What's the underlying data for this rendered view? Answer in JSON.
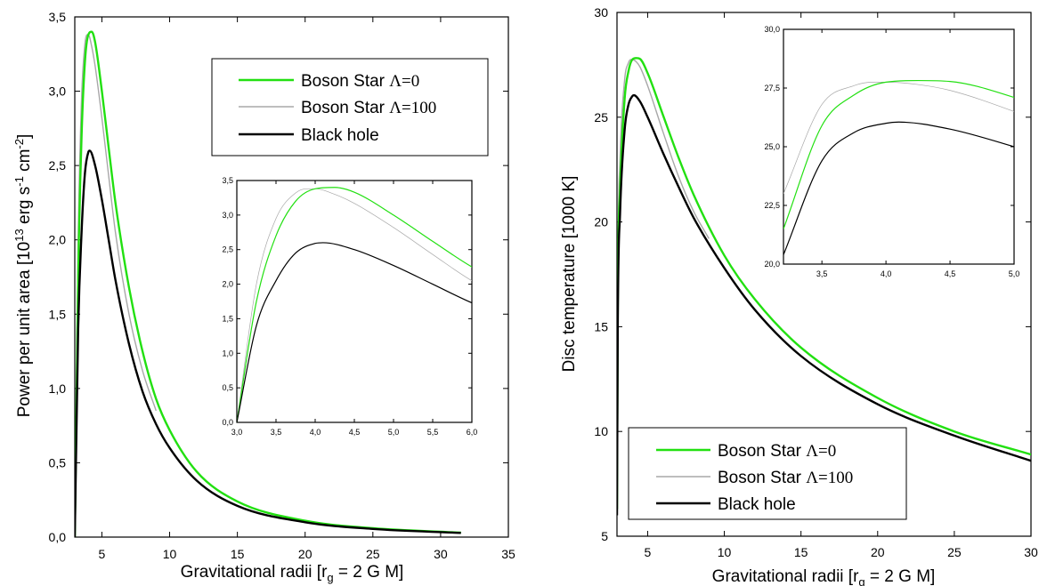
{
  "chart_data": [
    {
      "type": "line",
      "xlabel_main": "Gravitational radii [r",
      "xlabel_sub": "g",
      "xlabel_rest": " = 2 G M]",
      "ylabel_main": "Power per unit area [10",
      "ylabel_sup1": "13",
      "ylabel_mid": " erg s",
      "ylabel_sup2": "-1",
      "ylabel_mid2": " cm",
      "ylabel_sup3": "-2",
      "ylabel_end": "]",
      "xlim": [
        3,
        35
      ],
      "ylim": [
        0,
        3.5
      ],
      "xticks": [
        "5",
        "10",
        "15",
        "20",
        "25",
        "30",
        "35"
      ],
      "xtick_values": [
        5,
        10,
        15,
        20,
        25,
        30,
        35
      ],
      "yticks": [
        "0,0",
        "0,5",
        "1,0",
        "1,5",
        "2,0",
        "2,5",
        "3,0",
        "3,5"
      ],
      "ytick_values": [
        0,
        0.5,
        1.0,
        1.5,
        2.0,
        2.5,
        3.0,
        3.5
      ],
      "legend": [
        {
          "name": "Boson Star",
          "greek": "Λ=0",
          "color": "#22e011"
        },
        {
          "name": "Boson Star",
          "greek": "Λ=100",
          "color": "#a8a8a8"
        },
        {
          "name": "Black hole",
          "greek": "",
          "color": "#000000"
        }
      ],
      "series": [
        {
          "name": "Boson Star Λ=0",
          "color": "#22e011",
          "x": [
            3.0,
            3.25,
            3.5,
            3.75,
            4.0,
            4.25,
            4.5,
            5.0,
            5.5,
            6.0,
            7.0,
            8.0,
            9.0,
            10.0,
            12.0,
            15.0,
            20.0,
            25.0,
            31.5
          ],
          "y": [
            0.0,
            1.75,
            2.7,
            3.2,
            3.38,
            3.4,
            3.33,
            3.0,
            2.62,
            2.25,
            1.68,
            1.25,
            0.93,
            0.72,
            0.44,
            0.24,
            0.11,
            0.06,
            0.03
          ]
        },
        {
          "name": "Boson Star Λ=100",
          "color": "#a8a8a8",
          "x": [
            3.0,
            3.25,
            3.5,
            3.75,
            3.9,
            4.0,
            4.25,
            4.5,
            5.0,
            5.5,
            6.0,
            7.0,
            8.0,
            9.0
          ],
          "y": [
            0.0,
            2.0,
            2.95,
            3.32,
            3.38,
            3.38,
            3.3,
            3.17,
            2.82,
            2.43,
            2.05,
            1.5,
            1.12,
            0.85
          ]
        },
        {
          "name": "Black hole",
          "color": "#000000",
          "x": [
            3.0,
            3.25,
            3.5,
            3.75,
            4.0,
            4.1,
            4.5,
            5.0,
            5.5,
            6.0,
            7.0,
            8.0,
            9.0,
            10.0,
            12.0,
            15.0,
            20.0,
            25.0,
            31.5
          ],
          "y": [
            0.0,
            1.4,
            2.05,
            2.45,
            2.59,
            2.6,
            2.5,
            2.27,
            2.0,
            1.73,
            1.3,
            0.98,
            0.76,
            0.6,
            0.38,
            0.21,
            0.1,
            0.055,
            0.028
          ]
        }
      ],
      "inset": {
        "xlim": [
          3.0,
          6.0
        ],
        "ylim": [
          0.0,
          3.5
        ],
        "xticks": [
          "3,0",
          "3,5",
          "4,0",
          "4,5",
          "5,0",
          "5,5",
          "6,0"
        ],
        "xtick_values": [
          3.0,
          3.5,
          4.0,
          4.5,
          5.0,
          5.5,
          6.0
        ],
        "yticks": [
          "0,0",
          "0,5",
          "1,0",
          "1,5",
          "2,0",
          "2,5",
          "3,0",
          "3,5"
        ],
        "ytick_values": [
          0,
          0.5,
          1.0,
          1.5,
          2.0,
          2.5,
          3.0,
          3.5
        ]
      }
    },
    {
      "type": "line",
      "xlabel_main": "Gravitational radii [r",
      "xlabel_sub": "g",
      "xlabel_rest": " = 2 G M]",
      "ylabel": "Disc temperature [1000 K]",
      "xlim": [
        3,
        30
      ],
      "ylim": [
        5,
        30
      ],
      "xticks": [
        "5",
        "10",
        "15",
        "20",
        "25",
        "30"
      ],
      "xtick_values": [
        5,
        10,
        15,
        20,
        25,
        30
      ],
      "yticks": [
        "5",
        "10",
        "15",
        "20",
        "25",
        "30"
      ],
      "ytick_values": [
        5,
        10,
        15,
        20,
        25,
        30
      ],
      "legend": [
        {
          "name": "Boson Star",
          "greek": "Λ=0",
          "color": "#22e011"
        },
        {
          "name": "Boson Star",
          "greek": "Λ=100",
          "color": "#a8a8a8"
        },
        {
          "name": "Black hole",
          "greek": "",
          "color": "#000000"
        }
      ],
      "series": [
        {
          "name": "Boson Star Λ=0",
          "color": "#22e011",
          "x": [
            3.0,
            3.05,
            3.2,
            3.5,
            3.75,
            4.0,
            4.25,
            4.5,
            5.0,
            6.0,
            7.0,
            8.0,
            10.0,
            12.0,
            15.0,
            20.0,
            25.0,
            30.0
          ],
          "y": [
            6.3,
            16.0,
            21.5,
            25.9,
            27.2,
            27.75,
            27.82,
            27.78,
            27.1,
            25.1,
            23.1,
            21.3,
            18.4,
            16.3,
            14.0,
            11.6,
            10.0,
            8.9
          ]
        },
        {
          "name": "Boson Star Λ=100",
          "color": "#a8a8a8",
          "x": [
            3.0,
            3.05,
            3.2,
            3.5,
            3.75,
            3.9,
            4.0,
            4.25,
            4.5,
            5.0,
            6.0,
            7.0,
            8.0,
            9.0
          ],
          "y": [
            6.3,
            17.0,
            23.0,
            26.8,
            27.6,
            27.75,
            27.75,
            27.65,
            27.4,
            26.5,
            24.3,
            22.2,
            20.5,
            19.2
          ]
        },
        {
          "name": "Black hole",
          "color": "#000000",
          "x": [
            3.0,
            3.05,
            3.2,
            3.5,
            3.75,
            4.0,
            4.1,
            4.5,
            5.0,
            6.0,
            7.0,
            8.0,
            10.0,
            12.0,
            15.0,
            20.0,
            25.0,
            30.0
          ],
          "y": [
            6.0,
            15.0,
            20.4,
            24.4,
            25.6,
            26.0,
            26.05,
            25.75,
            25.0,
            23.3,
            21.7,
            20.2,
            17.8,
            15.8,
            13.6,
            11.3,
            9.8,
            8.6
          ]
        }
      ],
      "inset": {
        "xlim": [
          3.2,
          5.0
        ],
        "ylim": [
          20.0,
          30.0
        ],
        "xticks": [
          "3,5",
          "4,0",
          "4,5",
          "5,0"
        ],
        "xtick_values": [
          3.5,
          4.0,
          4.5,
          5.0
        ],
        "yticks": [
          "20,0",
          "22,5",
          "25,0",
          "27,5",
          "30,0"
        ],
        "ytick_values": [
          20.0,
          22.5,
          25.0,
          27.5,
          30.0
        ]
      }
    }
  ]
}
